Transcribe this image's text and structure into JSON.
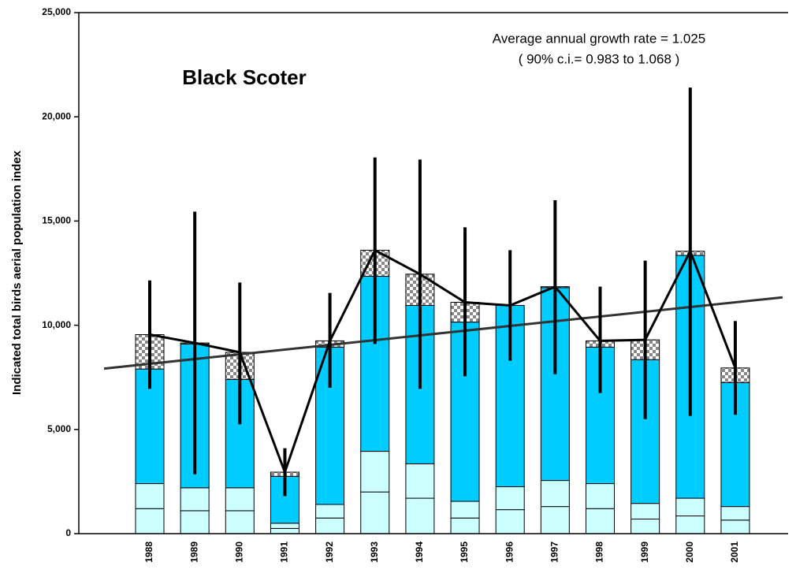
{
  "chart_data": {
    "type": "stacked-bar",
    "title": "Black Scoter",
    "ylabel": "Indicated total birds aerial population index",
    "annotations": [
      "Average annual growth rate = 1.025",
      "( 90% c.i.= 0.983 to 1.068 )"
    ],
    "categories": [
      "1988",
      "1989",
      "1990",
      "1991",
      "1992",
      "1993",
      "1994",
      "1995",
      "1996",
      "1997",
      "1998",
      "1999",
      "2000",
      "2001"
    ],
    "series": [
      {
        "color": "#ccffff",
        "values": [
          1200,
          1100,
          1100,
          250,
          750,
          2000,
          1700,
          750,
          1150,
          1300,
          1200,
          700,
          850,
          650
        ]
      },
      {
        "color": "#ccffff",
        "values": [
          1200,
          1100,
          1100,
          250,
          650,
          1950,
          1650,
          800,
          1100,
          1250,
          1200,
          750,
          850,
          650
        ]
      },
      {
        "color": "#00ccff",
        "values": [
          5500,
          6900,
          5200,
          2250,
          7550,
          8400,
          7600,
          8600,
          8700,
          9250,
          6550,
          6900,
          11650,
          5950
        ]
      },
      {
        "color": "#888888",
        "pattern": "checker",
        "values": [
          1650,
          50,
          1300,
          200,
          300,
          1250,
          1500,
          950,
          0,
          50,
          300,
          950,
          200,
          700
        ]
      }
    ],
    "line": {
      "color": "#000000",
      "values": [
        9550,
        9150,
        8700,
        2950,
        9250,
        13600,
        12450,
        11100,
        10950,
        11850,
        9250,
        9300,
        13550,
        7950
      ]
    },
    "error_high": [
      12150,
      15450,
      12050,
      4100,
      11550,
      18050,
      17950,
      14700,
      13600,
      16000,
      11850,
      13100,
      21400,
      10200
    ],
    "error_low": [
      6950,
      2850,
      5250,
      1800,
      7000,
      9100,
      6950,
      7550,
      8300,
      7650,
      6750,
      5500,
      5650,
      5700
    ],
    "trend": {
      "color": "#333333",
      "start": 8150,
      "end": 11100
    },
    "ylim": [
      0,
      25000
    ],
    "yticks": [
      {
        "value": 0,
        "label": "0"
      },
      {
        "value": 5000,
        "label": "5,000"
      },
      {
        "value": 10000,
        "label": "10,000"
      },
      {
        "value": 15000,
        "label": "15,000"
      },
      {
        "value": 20000,
        "label": "20,000"
      },
      {
        "value": 25000,
        "label": "25,000"
      }
    ]
  }
}
